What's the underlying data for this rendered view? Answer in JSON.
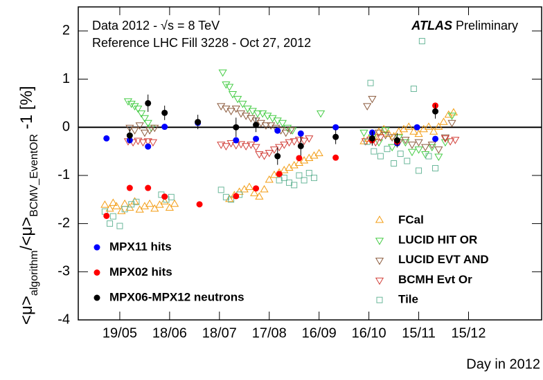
{
  "chart_data": {
    "type": "scatter",
    "y_label_parts": [
      "<μ>",
      "algorithm",
      "/<μ>",
      "BCMV_EventOR",
      " -1 [%]"
    ],
    "x_label": "Day in 2012",
    "annotations": [
      "Data 2012 - √s = 8 TeV",
      "Reference LHC Fill 3228 - Oct 27, 2012"
    ],
    "experiment": "ATLAS",
    "status": "Preliminary",
    "xlim": [
      115,
      394
    ],
    "ylim": [
      -4,
      2.5
    ],
    "xticks": [
      {
        "value": 140,
        "label": "19/05"
      },
      {
        "value": 170,
        "label": "18/06"
      },
      {
        "value": 200,
        "label": "18/07"
      },
      {
        "value": 230,
        "label": "17/08"
      },
      {
        "value": 260,
        "label": "16/09"
      },
      {
        "value": 290,
        "label": "16/10"
      },
      {
        "value": 320,
        "label": "15/11"
      },
      {
        "value": 350,
        "label": "15/12"
      }
    ],
    "yticks": [
      -4,
      -3,
      -2,
      -1,
      0,
      1,
      2
    ],
    "reference_line": 0,
    "series": [
      {
        "name": "MPX11 hits",
        "color": "#0000ff",
        "marker": "circle",
        "x": [
          132,
          146,
          157,
          167,
          187,
          210,
          222,
          235,
          249,
          270,
          292,
          307,
          319,
          330
        ],
        "values": [
          -0.23,
          -0.27,
          -0.4,
          0.01,
          0.09,
          -0.27,
          -0.24,
          -0.07,
          -0.13,
          0,
          -0.11,
          -0.33,
          0,
          -0.24
        ]
      },
      {
        "name": "MPX02 hits",
        "color": "#ff0000",
        "marker": "circle",
        "x": [
          132,
          146,
          157,
          167,
          188,
          210,
          222,
          236,
          248,
          270,
          292,
          307,
          330
        ],
        "values": [
          -1.84,
          -1.26,
          -1.26,
          -1.44,
          -1.6,
          -1.43,
          -1.27,
          -0.97,
          -0.64,
          -0.63,
          -0.27,
          -0.3,
          0.45
        ]
      },
      {
        "name": "MPX06-MPX12 neutrons",
        "color": "#000000",
        "marker": "circle",
        "x": [
          146,
          157,
          167,
          187,
          210,
          222,
          235,
          249,
          270,
          292,
          307,
          330
        ],
        "values": [
          -0.17,
          0.5,
          0.3,
          0.11,
          0,
          0.05,
          -0.6,
          -0.39,
          -0.2,
          -0.23,
          -0.27,
          0.33
        ],
        "errors": [
          0.15,
          0.18,
          0.15,
          0.15,
          0.2,
          0.15,
          0.18,
          0.2,
          0.15,
          0.15,
          0.15,
          0.15
        ]
      },
      {
        "name": "FCal",
        "color": "#f39c12",
        "marker": "triangle-up",
        "x": [
          131,
          134,
          136,
          138,
          141,
          143,
          146,
          149,
          152,
          155,
          158,
          161,
          164,
          167,
          170,
          173,
          206,
          209,
          212,
          215,
          218,
          221,
          224,
          227,
          230,
          233,
          236,
          239,
          242,
          245,
          248,
          251,
          254,
          257,
          260,
          287,
          290,
          293,
          296,
          299,
          302,
          305,
          308,
          311,
          314,
          317,
          320,
          323,
          326,
          329,
          332,
          335,
          338,
          341
        ],
        "values": [
          -1.62,
          -1.7,
          -1.58,
          -1.65,
          -1.75,
          -1.6,
          -1.68,
          -1.55,
          -1.72,
          -1.65,
          -1.6,
          -1.7,
          -1.62,
          -1.55,
          -1.68,
          -1.6,
          -1.5,
          -1.42,
          -1.35,
          -1.3,
          -1.25,
          -1.38,
          -1.45,
          -1.3,
          -1.1,
          -1.0,
          -0.95,
          -0.9,
          -0.85,
          -0.8,
          -0.75,
          -0.7,
          -0.65,
          -0.6,
          -0.55,
          -0.3,
          -0.25,
          -0.2,
          -0.1,
          -0.05,
          -0.15,
          -0.2,
          -0.1,
          -0.05,
          0,
          -0.1,
          -0.15,
          -0.05,
          0,
          -0.1,
          0,
          0.1,
          0.25,
          0.3
        ]
      },
      {
        "name": "LUCID HIT OR",
        "color": "#44cc44",
        "marker": "triangle-down",
        "x": [
          145,
          147,
          149,
          151,
          153,
          155,
          157,
          159,
          202,
          204,
          206,
          208,
          211,
          214,
          217,
          220,
          223,
          226,
          229,
          232,
          235,
          238,
          241,
          244,
          261,
          287,
          292,
          296,
          300,
          304,
          308,
          312,
          316,
          320,
          324,
          328,
          332,
          336,
          340
        ],
        "values": [
          0.55,
          0.5,
          0.45,
          0.4,
          0.3,
          0.2,
          0.1,
          0,
          1.15,
          0.9,
          0.85,
          0.7,
          0.6,
          0.5,
          0.4,
          0.35,
          0.3,
          0.3,
          0.25,
          0.2,
          0.15,
          0.1,
          0,
          -0.05,
          0.3,
          -0.1,
          -0.2,
          -0.3,
          -0.05,
          -0.4,
          -0.2,
          -0.3,
          -0.5,
          -0.45,
          -0.55,
          -0.4,
          -0.6,
          -0.3,
          0.25
        ]
      },
      {
        "name": "LUCID EVT AND",
        "color": "#8b5a3c",
        "marker": "triangle-down",
        "x": [
          146,
          149,
          152,
          155,
          158,
          161,
          201,
          204,
          207,
          210,
          213,
          216,
          219,
          222,
          225,
          228,
          231,
          234,
          237,
          240,
          243,
          289,
          292,
          296,
          300,
          304,
          308,
          312,
          316,
          320,
          324,
          328,
          332,
          336,
          340
        ],
        "values": [
          0,
          -0.05,
          0.05,
          -0.1,
          -0.05,
          0,
          0.45,
          0.4,
          0.35,
          0.4,
          0.3,
          0.25,
          0.2,
          0.15,
          0.1,
          0.05,
          0.05,
          0,
          -0.05,
          -0.1,
          -0.05,
          0.45,
          0.6,
          -0.1,
          -0.15,
          -0.2,
          -0.3,
          -0.25,
          -0.35,
          -0.3,
          -0.4,
          -0.35,
          -0.45,
          -0.2,
          0.1
        ]
      },
      {
        "name": "BCMH Evt Or",
        "color": "#d2403a",
        "marker": "triangle-down",
        "x": [
          145,
          148,
          151,
          154,
          157,
          160,
          201,
          204,
          207,
          210,
          213,
          216,
          219,
          222,
          224,
          227,
          230,
          233,
          236,
          239,
          242,
          245,
          248,
          251,
          254,
          288,
          291,
          294,
          297,
          336,
          339,
          342
        ],
        "values": [
          -0.28,
          -0.3,
          -0.27,
          -0.3,
          -0.28,
          -0.3,
          -0.35,
          -0.38,
          -0.32,
          -0.36,
          -0.34,
          -0.38,
          -0.35,
          -0.4,
          -0.55,
          -0.58,
          -0.52,
          -0.45,
          -0.4,
          -0.35,
          -0.3,
          -0.28,
          -0.25,
          -0.27,
          -0.22,
          -0.28,
          -0.25,
          -0.3,
          -0.2,
          -0.22,
          -0.28,
          -0.25
        ]
      },
      {
        "name": "Tile",
        "color": "#6ab79a",
        "marker": "square",
        "x": [
          131,
          134,
          136,
          140,
          143,
          147,
          150,
          165,
          168,
          171,
          201,
          204,
          207,
          212,
          236,
          239,
          242,
          245,
          248,
          251,
          254,
          257,
          289,
          291,
          293,
          297,
          301,
          305,
          309,
          313,
          317,
          320,
          322,
          326,
          330
        ],
        "values": [
          -1.75,
          -2.0,
          -1.85,
          -2.05,
          -1.7,
          -1.6,
          -1.55,
          -1.4,
          -1.5,
          -1.45,
          -1.3,
          -1.45,
          -1.5,
          -1.4,
          -1.1,
          -1.05,
          -1.15,
          -1.2,
          -1.0,
          -1.1,
          -0.95,
          -1.05,
          -0.3,
          0.92,
          -0.5,
          -0.6,
          -0.45,
          -0.75,
          -0.55,
          -0.7,
          0.8,
          -0.9,
          1.79,
          -0.6,
          -0.85
        ]
      }
    ]
  }
}
